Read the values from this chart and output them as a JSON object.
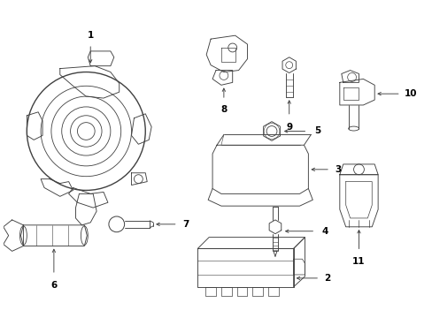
{
  "background_color": "#ffffff",
  "line_color": "#404040",
  "fig_width": 4.89,
  "fig_height": 3.6,
  "dpi": 100,
  "label_fontsize": 7.5,
  "lw": 0.65
}
